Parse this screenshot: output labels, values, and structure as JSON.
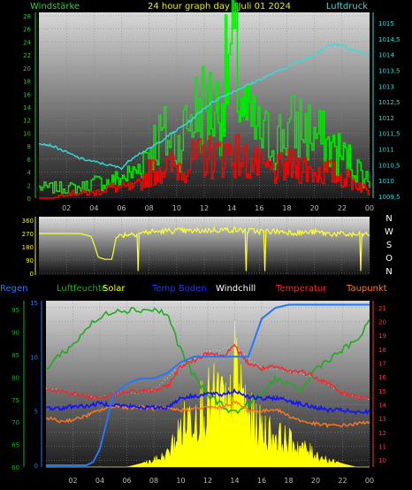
{
  "header": {
    "left_label": "Windstärke",
    "center_label": "24 hour graph day : Juli 01 2024",
    "right_label": "Luftdruck"
  },
  "colors": {
    "wind_gust": "#00ee00",
    "wind_avg": "#ff0000",
    "pressure": "#33dddd",
    "direction": "#ffff33",
    "rain": "#2277ff",
    "humidity": "#22aa22",
    "solar": "#ffff00",
    "temp_soil": "#1111ff",
    "windchill": "#ffffff",
    "temperature": "#ff2222",
    "dewpoint": "#ff7722"
  },
  "compass": [
    "N",
    "W",
    "S",
    "O",
    "N"
  ],
  "legend": {
    "regen": "Regen",
    "luftfeuchte": "Luftfeuchte",
    "solar": "Solar",
    "temp_boden": "Temp Boden",
    "windchill": "Windchill",
    "temperatur": "Temperatur",
    "taupunkt": "Taupunkt"
  },
  "chart_data": [
    {
      "type": "line",
      "name": "wind_pressure",
      "x_ticks": [
        "02",
        "04",
        "06",
        "08",
        "10",
        "12",
        "14",
        "16",
        "18",
        "20",
        "22",
        "00"
      ],
      "y_left_ticks": [
        "0",
        "2",
        "4",
        "6",
        "8",
        "10",
        "12",
        "14",
        "16",
        "18",
        "20",
        "22",
        "24",
        "26",
        "28"
      ],
      "y_left_range": [
        0,
        28
      ],
      "y_right_ticks": [
        "1009,5",
        "1010",
        "1010,5",
        "1011",
        "1011,5",
        "1012",
        "1012,5",
        "1013",
        "1013,5",
        "1014",
        "1014,5",
        "1015"
      ],
      "y_right_range": [
        1009.5,
        1015
      ],
      "x_range_hours": [
        0,
        24
      ],
      "series": [
        {
          "key": "pressure",
          "axis": "right",
          "x": [
            0,
            1,
            2,
            3,
            4,
            5,
            6,
            7,
            8,
            9,
            10,
            11,
            12,
            13,
            14,
            15,
            16,
            17,
            18,
            19,
            20,
            21,
            22,
            23,
            24
          ],
          "values": [
            1011.2,
            1011.1,
            1010.9,
            1010.7,
            1010.6,
            1010.5,
            1010.4,
            1010.8,
            1011.0,
            1011.3,
            1011.6,
            1011.9,
            1012.3,
            1012.6,
            1012.8,
            1013.0,
            1013.2,
            1013.4,
            1013.6,
            1013.8,
            1014.0,
            1014.3,
            1014.3,
            1014.1,
            1014.0
          ]
        },
        {
          "key": "wind_gust",
          "axis": "left",
          "x": [
            0,
            1,
            2,
            3,
            4,
            5,
            6,
            7,
            8,
            9,
            10,
            11,
            12,
            13,
            14,
            15,
            16,
            17,
            18,
            19,
            20,
            21,
            22,
            23,
            24
          ],
          "values": [
            2,
            2,
            2,
            2,
            3,
            3,
            4,
            5,
            10,
            12,
            10,
            16,
            18,
            17,
            28,
            15,
            12,
            11,
            13,
            14,
            12,
            10,
            8,
            6,
            3
          ]
        },
        {
          "key": "wind_avg",
          "axis": "left",
          "x": [
            0,
            1,
            2,
            3,
            4,
            5,
            6,
            7,
            8,
            9,
            10,
            11,
            12,
            13,
            14,
            15,
            16,
            17,
            18,
            19,
            20,
            21,
            22,
            23,
            24
          ],
          "values": [
            0,
            0,
            1,
            1,
            1,
            2,
            2,
            2,
            5,
            6,
            6,
            7,
            8,
            8,
            9,
            7,
            6,
            5,
            6,
            6,
            5,
            5,
            4,
            3,
            1
          ]
        }
      ]
    },
    {
      "type": "line",
      "name": "wind_direction",
      "x_range_hours": [
        0,
        24
      ],
      "y_ticks": [
        "0",
        "90",
        "180",
        "270",
        "360"
      ],
      "y_range": [
        0,
        360
      ],
      "series": [
        {
          "key": "direction",
          "x": [
            0,
            1,
            2,
            3,
            3.8,
            4.1,
            4.3,
            4.8,
            5.3,
            5.6,
            6,
            7,
            8,
            9,
            10,
            11,
            12,
            13,
            14,
            15,
            16,
            17,
            18,
            19,
            20,
            21,
            22,
            23,
            24
          ],
          "values": [
            270,
            270,
            270,
            270,
            250,
            170,
            110,
            95,
            95,
            240,
            260,
            270,
            280,
            285,
            290,
            285,
            290,
            295,
            295,
            290,
            285,
            285,
            280,
            275,
            280,
            270,
            265,
            260,
            265
          ]
        }
      ]
    },
    {
      "type": "line",
      "name": "climate",
      "x_range_hours": [
        0,
        24
      ],
      "x_ticks": [
        "02",
        "04",
        "06",
        "08",
        "10",
        "12",
        "14",
        "16",
        "18",
        "20",
        "22",
        "00"
      ],
      "y_rain_ticks": [
        "0",
        "5",
        "10",
        "15"
      ],
      "y_rain_range": [
        0,
        15
      ],
      "y_humidity_ticks": [
        "60",
        "65",
        "70",
        "75",
        "80",
        "85",
        "90",
        "95"
      ],
      "y_humidity_range": [
        60,
        97
      ],
      "y_temp_ticks": [
        "10",
        "11",
        "12",
        "13",
        "14",
        "15",
        "16",
        "17",
        "18",
        "19",
        "20",
        "21"
      ],
      "y_temp_range": [
        9.5,
        21.5
      ],
      "series": [
        {
          "key": "rain",
          "axis": "rain",
          "x": [
            0,
            2,
            3,
            3.5,
            4,
            4.5,
            5,
            6,
            7,
            8,
            9,
            10,
            11,
            12,
            13,
            14,
            15,
            16,
            17,
            18,
            19,
            20,
            21,
            22,
            23,
            24
          ],
          "values": [
            0,
            0,
            0,
            0.3,
            1.5,
            4,
            6.5,
            7.5,
            8,
            8,
            8.5,
            9.5,
            10,
            10,
            10,
            10,
            10,
            13.5,
            14.5,
            14.8,
            14.8,
            14.8,
            14.8,
            14.8,
            14.8,
            14.8
          ]
        },
        {
          "key": "humidity",
          "axis": "humidity",
          "x": [
            0,
            1,
            2,
            3,
            4,
            5,
            6,
            7,
            8,
            9,
            10,
            11,
            12,
            13,
            14,
            15,
            16,
            17,
            18,
            19,
            20,
            21,
            22,
            23,
            24
          ],
          "values": [
            82,
            85,
            87,
            91,
            93,
            95,
            95,
            95,
            95,
            94,
            86,
            80,
            76,
            74,
            72,
            74,
            76,
            80,
            78,
            77,
            82,
            84,
            86,
            88,
            92
          ]
        },
        {
          "key": "temperature",
          "axis": "temp",
          "x": [
            0,
            1,
            2,
            3,
            4,
            5,
            6,
            7,
            8,
            9,
            10,
            11,
            12,
            13,
            14,
            15,
            16,
            17,
            18,
            19,
            20,
            21,
            22,
            23,
            24
          ],
          "values": [
            15.2,
            15.0,
            14.8,
            14.6,
            14.5,
            14.7,
            14.9,
            15.0,
            15.0,
            15.3,
            16.8,
            17.2,
            17.8,
            17.5,
            18.2,
            17.0,
            16.6,
            16.7,
            16.4,
            16.4,
            16.0,
            15.5,
            14.8,
            14.6,
            14.4
          ]
        },
        {
          "key": "temp_soil",
          "axis": "temp",
          "x": [
            0,
            1,
            2,
            3,
            4,
            5,
            6,
            7,
            8,
            9,
            10,
            11,
            12,
            13,
            14,
            15,
            16,
            17,
            18,
            19,
            20,
            21,
            22,
            23,
            24
          ],
          "values": [
            13.8,
            13.7,
            13.9,
            13.9,
            14.1,
            14.0,
            13.9,
            13.8,
            13.8,
            13.8,
            14.5,
            14.6,
            14.8,
            14.7,
            15.0,
            14.6,
            14.4,
            14.5,
            14.3,
            14.0,
            13.8,
            13.6,
            13.6,
            13.4,
            13.5
          ]
        },
        {
          "key": "dewpoint",
          "axis": "temp",
          "x": [
            0,
            1,
            2,
            3,
            4,
            5,
            6,
            7,
            8,
            9,
            10,
            11,
            12,
            13,
            14,
            15,
            16,
            17,
            18,
            19,
            20,
            21,
            22,
            23,
            24
          ],
          "values": [
            13.1,
            12.8,
            12.9,
            13.2,
            13.6,
            13.9,
            13.8,
            13.8,
            13.7,
            13.7,
            13.6,
            13.7,
            13.8,
            13.8,
            14.2,
            13.6,
            13.5,
            13.7,
            13.2,
            12.8,
            12.6,
            12.5,
            12.5,
            12.6,
            12.8
          ]
        },
        {
          "key": "windchill",
          "axis": "temp",
          "x": [
            0,
            2,
            4,
            6,
            8,
            10,
            12,
            14,
            16,
            18,
            20,
            22,
            24
          ],
          "values": [
            15.2,
            14.8,
            14.5,
            14.9,
            15.0,
            16.8,
            17.8,
            18.2,
            16.6,
            16.4,
            16.0,
            14.8,
            14.4
          ]
        },
        {
          "key": "solar",
          "axis": "solar",
          "x": [
            0,
            5,
            6,
            7,
            8,
            9,
            10,
            11,
            12,
            13,
            13.5,
            14,
            14.5,
            15,
            16,
            17,
            18,
            19,
            20,
            21,
            22,
            23,
            24
          ],
          "values": [
            0,
            0,
            0,
            0.02,
            0.05,
            0.1,
            0.3,
            0.45,
            0.5,
            0.55,
            0.4,
            0.75,
            0.6,
            0.4,
            0.3,
            0.25,
            0.2,
            0.15,
            0.1,
            0.05,
            0.02,
            0,
            0
          ]
        }
      ]
    }
  ]
}
